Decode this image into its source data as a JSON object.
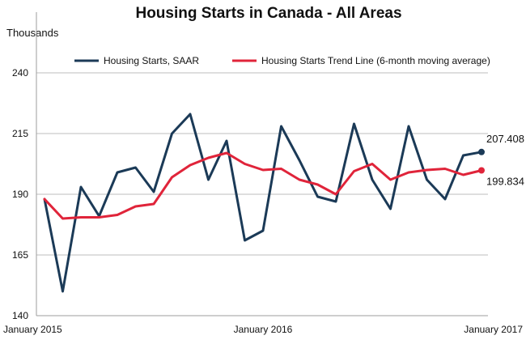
{
  "chart_data": {
    "type": "line",
    "title": "Housing Starts in Canada - All Areas",
    "ylabel": "Thousands",
    "xlabel": "",
    "ylim": [
      140,
      240
    ],
    "yticks": [
      140,
      165,
      190,
      215,
      240
    ],
    "x": [
      "2015-01",
      "2015-02",
      "2015-03",
      "2015-04",
      "2015-05",
      "2015-06",
      "2015-07",
      "2015-08",
      "2015-09",
      "2015-10",
      "2015-11",
      "2015-12",
      "2016-01",
      "2016-02",
      "2016-03",
      "2016-04",
      "2016-05",
      "2016-06",
      "2016-07",
      "2016-08",
      "2016-09",
      "2016-10",
      "2016-11",
      "2016-12",
      "2017-01"
    ],
    "xtick_labels": [
      {
        "index": 0,
        "label": "January 2015"
      },
      {
        "index": 12,
        "label": "January 2016"
      },
      {
        "index": 24,
        "label": "January 2017"
      }
    ],
    "grid": true,
    "legend_position": "top",
    "series": [
      {
        "name": "Housing Starts, SAAR",
        "color": "#1b3a57",
        "values": [
          188,
          150,
          193,
          181,
          199,
          201,
          191,
          215,
          223,
          196,
          212,
          171,
          175,
          218,
          204,
          189,
          187,
          219,
          196,
          184,
          218,
          196,
          188,
          206,
          207.408
        ],
        "end_label": "207.408"
      },
      {
        "name": "Housing Starts Trend Line (6-month moving average)",
        "color": "#e0243a",
        "values": [
          188,
          180,
          180.5,
          180.5,
          181.5,
          185,
          186,
          197,
          202,
          205,
          207,
          202.5,
          200,
          200.5,
          196,
          194,
          190,
          199.5,
          202.5,
          196,
          199,
          200,
          200.5,
          198,
          199.834
        ],
        "end_label": "199.834"
      }
    ]
  }
}
